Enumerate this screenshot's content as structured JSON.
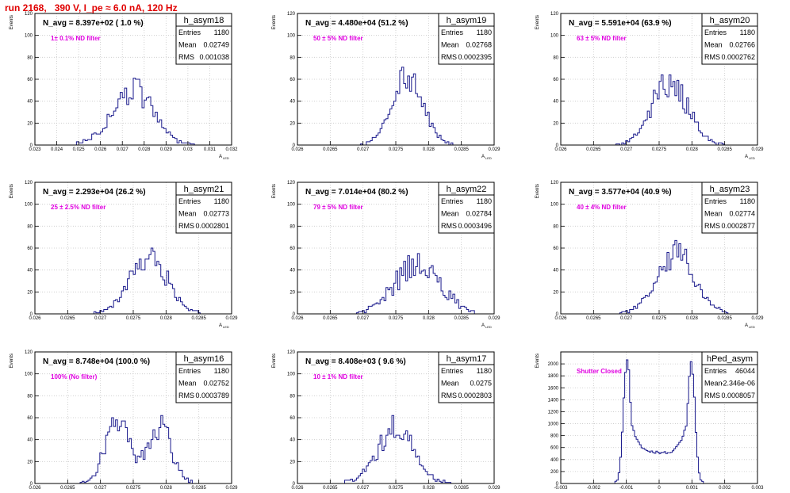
{
  "run_title": "run 2168,   390 V, I_pe ≈ 6.0 nA, 120 Hz",
  "colors": {
    "hist_line": "#1a1a8c",
    "note": "#e000e0",
    "title": "#e00000",
    "grid": "#c8c8c8"
  },
  "chart_data": [
    {
      "type": "histogram",
      "name": "h_asym18",
      "nlabel": "N_avg = 8.397e+02 ( 1.0 %)",
      "note": "1± 0.1% ND filter",
      "entries": "1180",
      "mean": "0.02749",
      "rms": "0.001038",
      "ylabel": "Events",
      "xlabel": "A_{LED}",
      "xlim": [
        0.023,
        0.032
      ],
      "ylim": [
        0,
        120
      ],
      "xticks": [
        0.023,
        0.024,
        0.025,
        0.026,
        0.027,
        0.028,
        0.029,
        0.03,
        0.031,
        0.032
      ],
      "xtick_labels": [
        "0.023",
        "0.024",
        "0.025",
        "0.026",
        "0.027",
        "0.028",
        "0.029",
        "0.03",
        "0.031",
        "0.032"
      ],
      "yticks": [
        0,
        20,
        40,
        60,
        80,
        100,
        120
      ],
      "ytick_labels": [
        "0",
        "20",
        "40",
        "60",
        "80",
        "100",
        "120"
      ],
      "shape": {
        "mean": 0.02749,
        "sigma": 0.00095,
        "peak": 50,
        "lo": 0.0247,
        "hi": 0.0304,
        "noise": 0.25
      }
    },
    {
      "type": "histogram",
      "name": "h_asym19",
      "nlabel": "N_avg = 4.480e+04 (51.2 %)",
      "note": "50 ± 5% ND filter",
      "entries": "1180",
      "mean": "0.02768",
      "rms": "0.0002395",
      "ylabel": "Events",
      "xlabel": "A_{LED}",
      "xlim": [
        0.026,
        0.029
      ],
      "ylim": [
        0,
        120
      ],
      "xticks": [
        0.026,
        0.0265,
        0.027,
        0.0275,
        0.028,
        0.0285,
        0.029
      ],
      "xtick_labels": [
        "0.026",
        "0.0265",
        "0.027",
        "0.0275",
        "0.028",
        "0.0285",
        "0.029"
      ],
      "yticks": [
        0,
        20,
        40,
        60,
        80,
        100,
        120
      ],
      "ytick_labels": [
        "0",
        "20",
        "40",
        "60",
        "80",
        "100",
        "120"
      ],
      "shape": {
        "mean": 0.02768,
        "sigma": 0.00024,
        "peak": 62,
        "lo": 0.02695,
        "hi": 0.0284,
        "noise": 0.2
      }
    },
    {
      "type": "histogram",
      "name": "h_asym20",
      "nlabel": "N_avg = 5.591e+04 (63.9 %)",
      "note": "63 ± 5% ND filter",
      "entries": "1180",
      "mean": "0.02766",
      "rms": "0.0002762",
      "ylabel": "Events",
      "xlabel": "A_{LED}",
      "xlim": [
        0.026,
        0.029
      ],
      "ylim": [
        0,
        120
      ],
      "xticks": [
        0.026,
        0.0265,
        0.027,
        0.0275,
        0.028,
        0.0285,
        0.029
      ],
      "xtick_labels": [
        "0.026",
        "0.0265",
        "0.027",
        "0.0275",
        "0.028",
        "0.0285",
        "0.029"
      ],
      "yticks": [
        0,
        20,
        40,
        60,
        80,
        100,
        120
      ],
      "ytick_labels": [
        "0",
        "20",
        "40",
        "60",
        "80",
        "100",
        "120"
      ],
      "shape": {
        "mean": 0.02766,
        "sigma": 0.00027,
        "peak": 58,
        "lo": 0.02685,
        "hi": 0.0285,
        "noise": 0.25
      }
    },
    {
      "type": "histogram",
      "name": "h_asym21",
      "nlabel": "N_avg = 2.293e+04 (26.2 %)",
      "note": "25 ± 2.5% ND filter",
      "entries": "1180",
      "mean": "0.02773",
      "rms": "0.0002801",
      "ylabel": "Events",
      "xlabel": "A_{LED}",
      "xlim": [
        0.026,
        0.029
      ],
      "ylim": [
        0,
        120
      ],
      "xticks": [
        0.026,
        0.0265,
        0.027,
        0.0275,
        0.028,
        0.0285,
        0.029
      ],
      "xtick_labels": [
        "0.026",
        "0.0265",
        "0.027",
        "0.0275",
        "0.028",
        "0.0285",
        "0.029"
      ],
      "yticks": [
        0,
        20,
        40,
        60,
        80,
        100,
        120
      ],
      "ytick_labels": [
        "0",
        "20",
        "40",
        "60",
        "80",
        "100",
        "120"
      ],
      "shape": {
        "mean": 0.02773,
        "sigma": 0.00028,
        "peak": 52,
        "lo": 0.0269,
        "hi": 0.02855,
        "noise": 0.25
      }
    },
    {
      "type": "histogram",
      "name": "h_asym22",
      "nlabel": "N_avg = 7.014e+04 (80.2 %)",
      "note": "79 ± 5% ND filter",
      "entries": "1180",
      "mean": "0.02784",
      "rms": "0.0003496",
      "ylabel": "Events",
      "xlabel": "A_{LED}",
      "xlim": [
        0.026,
        0.029
      ],
      "ylim": [
        0,
        120
      ],
      "xticks": [
        0.026,
        0.0265,
        0.027,
        0.0275,
        0.028,
        0.0285,
        0.029
      ],
      "xtick_labels": [
        "0.026",
        "0.0265",
        "0.027",
        "0.0275",
        "0.028",
        "0.0285",
        "0.029"
      ],
      "yticks": [
        0,
        20,
        40,
        60,
        80,
        100,
        120
      ],
      "ytick_labels": [
        "0",
        "20",
        "40",
        "60",
        "80",
        "100",
        "120"
      ],
      "shape": {
        "mean": 0.02784,
        "sigma": 0.00035,
        "peak": 45,
        "lo": 0.0269,
        "hi": 0.0287,
        "noise": 0.3
      }
    },
    {
      "type": "histogram",
      "name": "h_asym23",
      "nlabel": "N_avg = 3.577e+04 (40.9 %)",
      "note": "40 ± 4% ND filter",
      "entries": "1180",
      "mean": "0.02774",
      "rms": "0.0002877",
      "ylabel": "Events",
      "xlabel": "A_{LED}",
      "xlim": [
        0.026,
        0.029
      ],
      "ylim": [
        0,
        120
      ],
      "xticks": [
        0.026,
        0.0265,
        0.027,
        0.0275,
        0.028,
        0.0285,
        0.029
      ],
      "xtick_labels": [
        "0.026",
        "0.0265",
        "0.027",
        "0.0275",
        "0.028",
        "0.0285",
        "0.029"
      ],
      "yticks": [
        0,
        20,
        40,
        60,
        80,
        100,
        120
      ],
      "ytick_labels": [
        "0",
        "20",
        "40",
        "60",
        "80",
        "100",
        "120"
      ],
      "shape": {
        "mean": 0.02775,
        "sigma": 0.00029,
        "peak": 54,
        "lo": 0.0269,
        "hi": 0.02855,
        "noise": 0.25
      }
    },
    {
      "type": "histogram",
      "name": "h_asym16",
      "nlabel": "N_avg = 8.748e+04 (100.0 %)",
      "note": "100% (No filter)",
      "entries": "1180",
      "mean": "0.02752",
      "rms": "0.0003789",
      "ylabel": "Events",
      "xlabel": "A_{LED}",
      "xlim": [
        0.026,
        0.029
      ],
      "ylim": [
        0,
        120
      ],
      "xticks": [
        0.026,
        0.0265,
        0.027,
        0.0275,
        0.028,
        0.0285,
        0.029
      ],
      "xtick_labels": [
        "0.026",
        "0.0265",
        "0.027",
        "0.0275",
        "0.028",
        "0.0285",
        "0.029"
      ],
      "yticks": [
        0,
        20,
        40,
        60,
        80,
        100,
        120
      ],
      "ytick_labels": [
        "0",
        "20",
        "40",
        "60",
        "80",
        "100",
        "120"
      ],
      "shape": {
        "bimodal": true,
        "m1": 0.02723,
        "m2": 0.02793,
        "s1": 0.00016,
        "s2": 0.00017,
        "a1": 57,
        "a2": 47,
        "lo": 0.0267,
        "hi": 0.0284,
        "noise": 0.25
      }
    },
    {
      "type": "histogram",
      "name": "h_asym17",
      "nlabel": "N_avg = 8.408e+03 ( 9.6 %)",
      "note": "10 ± 1% ND filter",
      "entries": "1180",
      "mean": "0.0275",
      "rms": "0.0002803",
      "ylabel": "Events",
      "xlabel": "A_{LED}",
      "xlim": [
        0.026,
        0.029
      ],
      "ylim": [
        0,
        120
      ],
      "xticks": [
        0.026,
        0.0265,
        0.027,
        0.0275,
        0.028,
        0.0285,
        0.029
      ],
      "xtick_labels": [
        "0.026",
        "0.0265",
        "0.027",
        "0.0275",
        "0.028",
        "0.0285",
        "0.029"
      ],
      "yticks": [
        0,
        20,
        40,
        60,
        80,
        100,
        120
      ],
      "ytick_labels": [
        "0",
        "20",
        "40",
        "60",
        "80",
        "100",
        "120"
      ],
      "shape": {
        "mean": 0.0275,
        "sigma": 0.00028,
        "peak": 50,
        "lo": 0.02668,
        "hi": 0.02835,
        "noise": 0.25
      }
    },
    {
      "type": "histogram",
      "name": "hPed_asym",
      "nlabel": "",
      "note": "Shutter Closed",
      "entries": "46044",
      "mean": "-2.346e-06",
      "rms": "0.0008057",
      "ylabel": "Events",
      "xlabel": "",
      "xlim": [
        -0.003,
        0.003
      ],
      "ylim": [
        0,
        2200
      ],
      "xticks": [
        -0.003,
        -0.002,
        -0.001,
        0,
        0.001,
        0.002,
        0.003
      ],
      "xtick_labels": [
        "-0.003",
        "-0.002",
        "-0.001",
        "0",
        "0.001",
        "0.002",
        "0.003"
      ],
      "yticks": [
        0,
        200,
        400,
        600,
        800,
        1000,
        1200,
        1400,
        1600,
        1800,
        2000
      ],
      "ytick_labels": [
        "0",
        "200",
        "400",
        "600",
        "800",
        "1000",
        "1200",
        "1400",
        "1600",
        "1800",
        "2000"
      ],
      "shape": {
        "ped": true,
        "peak1": -0.00098,
        "peak2": 0.00098,
        "top1": 2100,
        "top2": 2060,
        "valley": 520,
        "lo": -0.00135,
        "hi": 0.00135,
        "noise": 0.04
      }
    }
  ]
}
